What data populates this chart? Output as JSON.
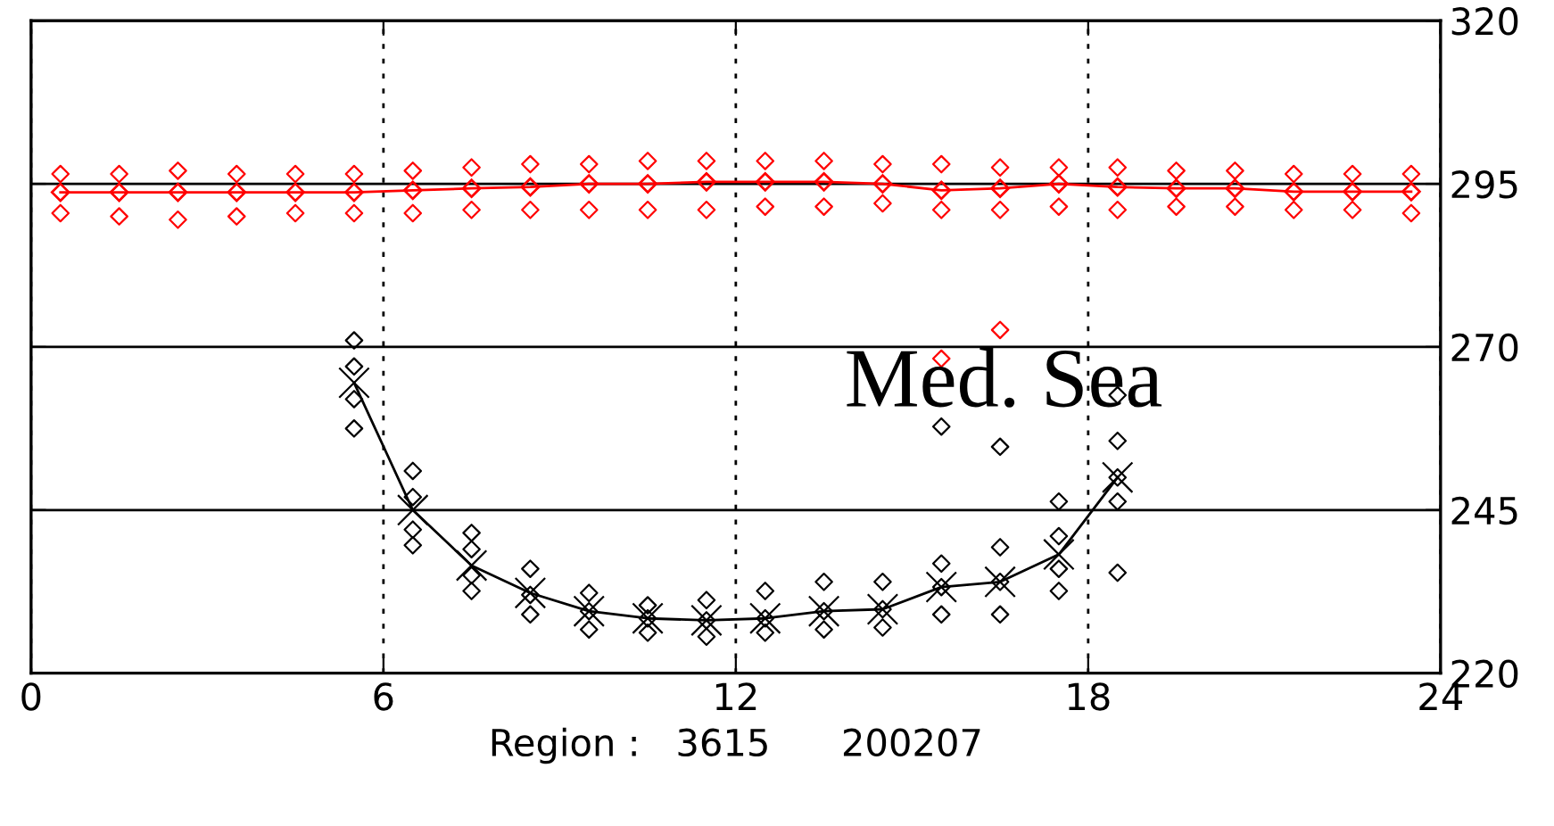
{
  "chart_data": {
    "type": "scatter",
    "xlabel": "Region :   3615      200207",
    "xlim": [
      0,
      24
    ],
    "xticks": [
      0,
      6,
      12,
      18,
      24
    ],
    "ylim": [
      220,
      320
    ],
    "yticks": [
      220,
      245,
      270,
      295,
      320
    ],
    "grid": true,
    "annotations": [
      "Med. Sea"
    ],
    "series": [
      {
        "color": "#ff0000",
        "marker": "diamond",
        "x": [
          0.5,
          0.5,
          0.5,
          1.5,
          1.5,
          1.5,
          2.5,
          2.5,
          2.5,
          3.5,
          3.5,
          3.5,
          4.5,
          4.5,
          4.5,
          5.5,
          5.5,
          5.5,
          6.5,
          6.5,
          6.5,
          7.5,
          7.5,
          7.5,
          8.5,
          8.5,
          8.5,
          9.5,
          9.5,
          9.5,
          10.5,
          10.5,
          10.5,
          11.5,
          11.5,
          11.5,
          12.5,
          12.5,
          12.5,
          13.5,
          13.5,
          13.5,
          14.5,
          14.5,
          14.5,
          15.5,
          15.5,
          15.5,
          15.5,
          16.5,
          16.5,
          16.5,
          16.5,
          17.5,
          17.5,
          17.5,
          18.5,
          18.5,
          18.5,
          19.5,
          19.5,
          19.5,
          20.5,
          20.5,
          20.5,
          21.5,
          21.5,
          21.5,
          22.5,
          22.5,
          22.5,
          23.5,
          23.5,
          23.5
        ],
        "values": [
          296.5,
          293.7,
          290.5,
          296.5,
          293.7,
          290,
          297,
          293.7,
          289.5,
          296.5,
          293.7,
          290,
          296.5,
          293.7,
          290.5,
          296.5,
          293.7,
          290.5,
          297,
          294,
          290.5,
          297.5,
          294.3,
          291,
          298,
          294.5,
          291,
          298,
          295,
          291,
          298.5,
          295,
          291,
          298.5,
          295.3,
          291,
          298.5,
          295.3,
          291.5,
          298.5,
          295.3,
          291.5,
          298,
          295,
          292,
          298,
          294,
          291,
          268.2,
          297.5,
          294.3,
          291,
          272.6,
          297.5,
          295,
          291.5,
          297.5,
          294.5,
          291,
          297,
          294.3,
          291.5,
          297,
          294.3,
          291.5,
          296.5,
          293.8,
          291,
          296.5,
          293.8,
          291,
          296.5,
          293.8,
          290.5
        ]
      },
      {
        "type": "line",
        "color": "#ff0000",
        "marker": "diamond",
        "x": [
          0.5,
          1.5,
          2.5,
          3.5,
          4.5,
          5.5,
          6.5,
          7.5,
          8.5,
          9.5,
          10.5,
          11.5,
          12.5,
          13.5,
          14.5,
          15.5,
          16.5,
          17.5,
          18.5,
          19.5,
          20.5,
          21.5,
          22.5,
          23.5
        ],
        "values": [
          293.7,
          293.7,
          293.7,
          293.7,
          293.7,
          293.7,
          294,
          294.3,
          294.5,
          295,
          295,
          295.3,
          295.3,
          295.3,
          295,
          294,
          294.3,
          295,
          294.5,
          294.3,
          294.3,
          293.8,
          293.8,
          293.8
        ]
      },
      {
        "color": "#000000",
        "marker": "diamond",
        "x": [
          5.5,
          5.5,
          5.5,
          5.5,
          6.5,
          6.5,
          6.5,
          6.5,
          7.5,
          7.5,
          7.5,
          7.5,
          8.5,
          8.5,
          8.5,
          9.5,
          9.5,
          9.5,
          10.5,
          10.5,
          10.5,
          11.5,
          11.5,
          11.5,
          12.5,
          12.5,
          12.5,
          13.5,
          13.5,
          13.5,
          14.5,
          14.5,
          14.5,
          15.5,
          15.5,
          15.5,
          15.5,
          16.5,
          16.5,
          16.5,
          16.5,
          17.5,
          17.5,
          17.5,
          17.5,
          18.5,
          18.5,
          18.5,
          18.5,
          18.5
        ],
        "values": [
          271,
          267,
          262,
          257.5,
          251,
          247,
          242,
          239.6,
          241.5,
          239,
          235,
          232.6,
          236,
          232,
          229,
          232.3,
          229.5,
          226.7,
          230.4,
          228.4,
          226.2,
          231.2,
          228.1,
          225.6,
          232.6,
          228.4,
          226.2,
          234,
          229.5,
          226.7,
          234,
          229.8,
          227,
          236.8,
          233.2,
          229,
          257.8,
          239.3,
          234,
          229,
          254.7,
          246.3,
          241,
          236,
          232.6,
          262.6,
          255.6,
          250,
          246.3,
          235.4
        ]
      },
      {
        "type": "line",
        "color": "#000000",
        "marker": "cross",
        "x": [
          5.5,
          6.5,
          7.5,
          8.5,
          9.5,
          10.5,
          11.5,
          12.5,
          13.5,
          14.5,
          15.5,
          16.5,
          17.5,
          18.5
        ],
        "values": [
          264.5,
          245,
          236.5,
          232.3,
          229.5,
          228.4,
          228.1,
          228.4,
          229.5,
          229.8,
          233.2,
          234,
          238.2,
          250
        ]
      }
    ]
  }
}
